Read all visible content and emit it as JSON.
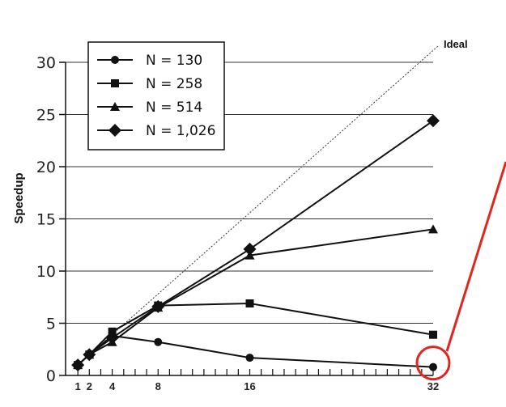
{
  "chart_data": {
    "type": "line",
    "ylabel": "Speedup",
    "xlabel": "",
    "ylim": [
      0,
      30
    ],
    "xlim": [
      0,
      32
    ],
    "yticks": [
      0,
      5,
      10,
      15,
      20,
      25,
      30
    ],
    "xticks": [
      1,
      2,
      4,
      8,
      16,
      32
    ],
    "x": [
      1,
      2,
      4,
      8,
      16,
      32
    ],
    "series": [
      {
        "name": "N = 130",
        "marker": "circle",
        "values": [
          1,
          2,
          3.8,
          3.2,
          1.7,
          0.8
        ]
      },
      {
        "name": "N = 258",
        "marker": "square",
        "values": [
          1,
          2,
          4.2,
          6.7,
          6.9,
          3.9
        ]
      },
      {
        "name": "N = 514",
        "marker": "triangle",
        "values": [
          1,
          2,
          3.2,
          6.5,
          11.5,
          14
        ]
      },
      {
        "name": "N = 1,026",
        "marker": "diamond",
        "values": [
          1,
          2,
          3.6,
          6.6,
          12.1,
          24.4
        ]
      }
    ],
    "ideal_label": "Ideal",
    "grid": "horizontal",
    "legend": "top-left",
    "highlight": {
      "x": 32,
      "y": 0.8,
      "color": "#e0271c"
    },
    "colors": {
      "lines": "#111111",
      "highlight": "#e0271c"
    }
  }
}
